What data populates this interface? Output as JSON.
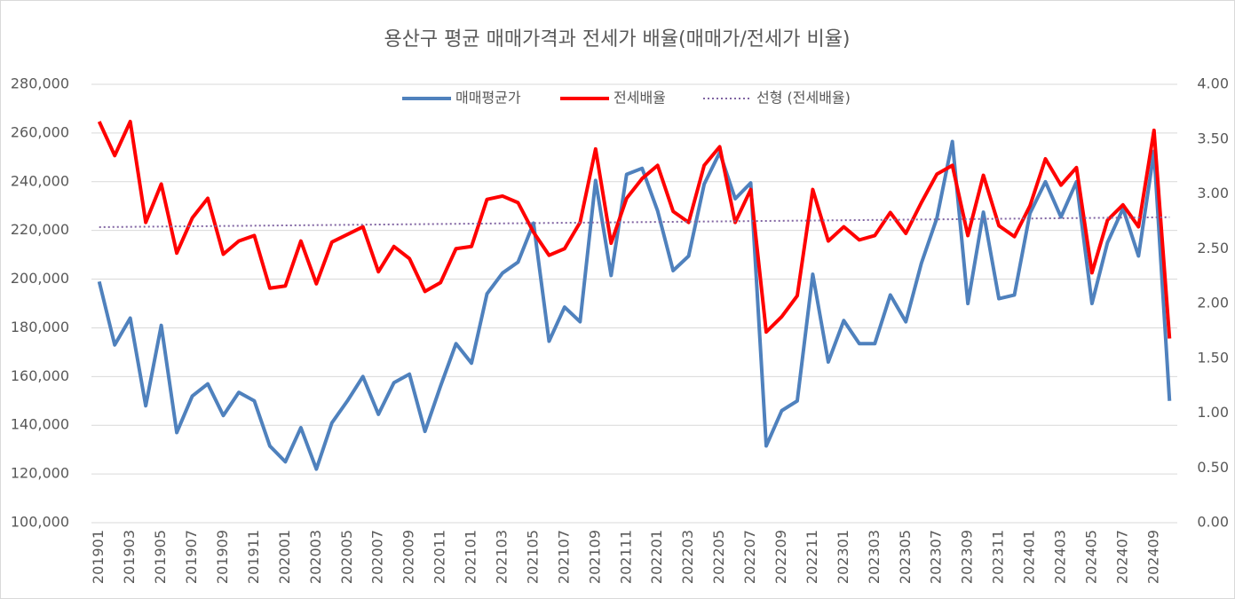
{
  "chart_data": {
    "type": "line",
    "title": "용산구 평균 매매가격과 전세가 배율(매매가/전세가 비율)",
    "categories": [
      "201901",
      null,
      "201903",
      null,
      "201905",
      null,
      "201907",
      null,
      "201909",
      null,
      "201911",
      null,
      "202001",
      null,
      "202003",
      null,
      "202005",
      null,
      "202007",
      null,
      "202009",
      null,
      "202011",
      null,
      "202101",
      null,
      "202103",
      null,
      "202105",
      null,
      "202107",
      null,
      "202109",
      null,
      "202111",
      null,
      "202201",
      null,
      "202203",
      null,
      "202205",
      null,
      "202207",
      null,
      "202209",
      null,
      "202211",
      null,
      "202301",
      null,
      "202303",
      null,
      "202305",
      null,
      "202307",
      null,
      "202309",
      null,
      "202311",
      null,
      "202401",
      null,
      "202403",
      null,
      "202405",
      null,
      "202407",
      null,
      "202409",
      null
    ],
    "series": [
      {
        "name": "매매평균가",
        "color": "#4f81bd",
        "axis": "y",
        "values": [
          199000,
          173000,
          184000,
          148000,
          181000,
          137000,
          152000,
          157000,
          144000,
          153500,
          150000,
          131500,
          125000,
          139000,
          122000,
          141000,
          150000,
          160000,
          144500,
          157500,
          161000,
          137500,
          156000,
          173500,
          165500,
          194000,
          202500,
          207000,
          223000,
          174500,
          188500,
          182500,
          240500,
          201500,
          243000,
          245500,
          228000,
          203500,
          209500,
          239000,
          252000,
          233000,
          239500,
          131500,
          146000,
          150000,
          202000,
          166000,
          183000,
          173500,
          173500,
          193500,
          182500,
          206500,
          225000,
          256500,
          190000,
          227500,
          192000,
          193500,
          227000,
          240000,
          225500,
          240000,
          190000,
          215000,
          229000,
          209500,
          252500,
          150000
        ]
      },
      {
        "name": "전세배율",
        "color": "#ff0000",
        "axis": "y2",
        "values": [
          3.66,
          3.35,
          3.66,
          2.74,
          3.09,
          2.46,
          2.78,
          2.96,
          2.45,
          2.57,
          2.62,
          2.14,
          2.16,
          2.57,
          2.18,
          2.56,
          2.63,
          2.7,
          2.29,
          2.52,
          2.41,
          2.11,
          2.19,
          2.5,
          2.52,
          2.95,
          2.98,
          2.92,
          2.65,
          2.44,
          2.5,
          2.74,
          3.41,
          2.55,
          2.96,
          3.14,
          3.26,
          2.84,
          2.74,
          3.26,
          3.43,
          2.74,
          3.04,
          1.74,
          1.88,
          2.07,
          3.04,
          2.57,
          2.7,
          2.58,
          2.62,
          2.83,
          2.64,
          2.92,
          3.18,
          3.26,
          2.62,
          3.17,
          2.71,
          2.61,
          2.89,
          3.32,
          3.08,
          3.24,
          2.28,
          2.76,
          2.9,
          2.7,
          3.58,
          1.68
        ],
        "trendline": {
          "name": "선형 (전세배율)",
          "color": "#8064a2",
          "style": "dotted"
        }
      }
    ],
    "ylim": [
      100000,
      280000
    ],
    "yticks": [
      {
        "value": 100000,
        "label": "100,000"
      },
      {
        "value": 120000,
        "label": "120,000"
      },
      {
        "value": 140000,
        "label": "140,000"
      },
      {
        "value": 160000,
        "label": "160,000"
      },
      {
        "value": 180000,
        "label": "180,000"
      },
      {
        "value": 200000,
        "label": "200,000"
      },
      {
        "value": 220000,
        "label": "220,000"
      },
      {
        "value": 240000,
        "label": "240,000"
      },
      {
        "value": 260000,
        "label": "260,000"
      },
      {
        "value": 280000,
        "label": "280,000"
      }
    ],
    "y2lim": [
      0,
      4
    ],
    "y2ticks": [
      {
        "value": 0,
        "label": "0.00"
      },
      {
        "value": 0.5,
        "label": "0.50"
      },
      {
        "value": 1,
        "label": "1.00"
      },
      {
        "value": 1.5,
        "label": "1.50"
      },
      {
        "value": 2,
        "label": "2.00"
      },
      {
        "value": 2.5,
        "label": "2.50"
      },
      {
        "value": 3,
        "label": "3.00"
      },
      {
        "value": 3.5,
        "label": "3.50"
      },
      {
        "value": 4,
        "label": "4.00"
      }
    ],
    "grid": true,
    "legend": "top"
  }
}
